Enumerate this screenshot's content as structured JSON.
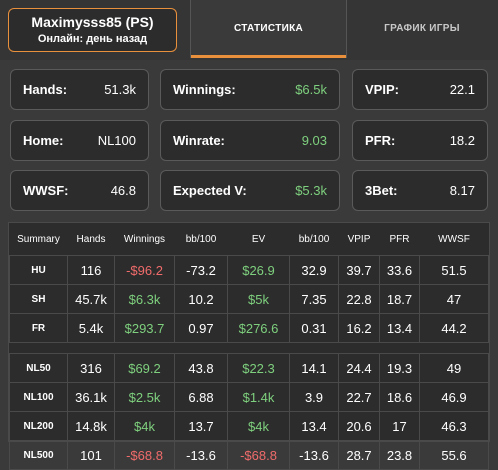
{
  "player": {
    "name": "Maximysss85 (PS)",
    "status": "Онлайн: день назад"
  },
  "tabs": [
    {
      "label": "СТАТИСТИКА",
      "active": true
    },
    {
      "label": "ГРАФИК ИГРЫ",
      "active": false
    }
  ],
  "stats": {
    "hands": {
      "label": "Hands:",
      "value": "51.3k"
    },
    "winnings": {
      "label": "Winnings:",
      "value": "$6.5k"
    },
    "vpip": {
      "label": "VPIP:",
      "value": "22.1"
    },
    "home": {
      "label": "Home:",
      "value": "NL100"
    },
    "winrate": {
      "label": "Winrate:",
      "value": "9.03"
    },
    "pfr": {
      "label": "PFR:",
      "value": "18.2"
    },
    "wwsf": {
      "label": "WWSF:",
      "value": "46.8"
    },
    "expected": {
      "label": "Expected V:",
      "value": "$5.3k"
    },
    "bet3": {
      "label": "3Bet:",
      "value": "8.17"
    }
  },
  "table": {
    "headers": [
      "Summary",
      "Hands",
      "Winnings",
      "bb/100",
      "EV",
      "bb/100",
      "VPIP",
      "PFR",
      "WWSF"
    ],
    "group1": [
      {
        "label": "HU",
        "cells": [
          "116",
          "-$96.2",
          "-73.2",
          "$26.9",
          "32.9",
          "39.7",
          "33.6",
          "51.5"
        ]
      },
      {
        "label": "SH",
        "cells": [
          "45.7k",
          "$6.3k",
          "10.2",
          "$5k",
          "7.35",
          "22.8",
          "18.7",
          "47"
        ]
      },
      {
        "label": "FR",
        "cells": [
          "5.4k",
          "$293.7",
          "0.97",
          "$276.6",
          "0.31",
          "16.2",
          "13.4",
          "44.2"
        ]
      }
    ],
    "group2": [
      {
        "label": "NL50",
        "cells": [
          "316",
          "$69.2",
          "43.8",
          "$22.3",
          "14.1",
          "24.4",
          "19.3",
          "49"
        ]
      },
      {
        "label": "NL100",
        "cells": [
          "36.1k",
          "$2.5k",
          "6.88",
          "$1.4k",
          "3.9",
          "22.7",
          "18.6",
          "46.9"
        ]
      },
      {
        "label": "NL200",
        "cells": [
          "14.8k",
          "$4k",
          "13.7",
          "$4k",
          "13.4",
          "20.6",
          "17",
          "46.3"
        ]
      },
      {
        "label": "NL500",
        "cells": [
          "101",
          "-$68.8",
          "-13.6",
          "-$68.8",
          "-13.6",
          "28.7",
          "23.8",
          "55.6"
        ]
      }
    ]
  },
  "colors": {
    "accent": "#e8903c",
    "positive": "#7ed07e",
    "negative": "#f06b6b"
  }
}
